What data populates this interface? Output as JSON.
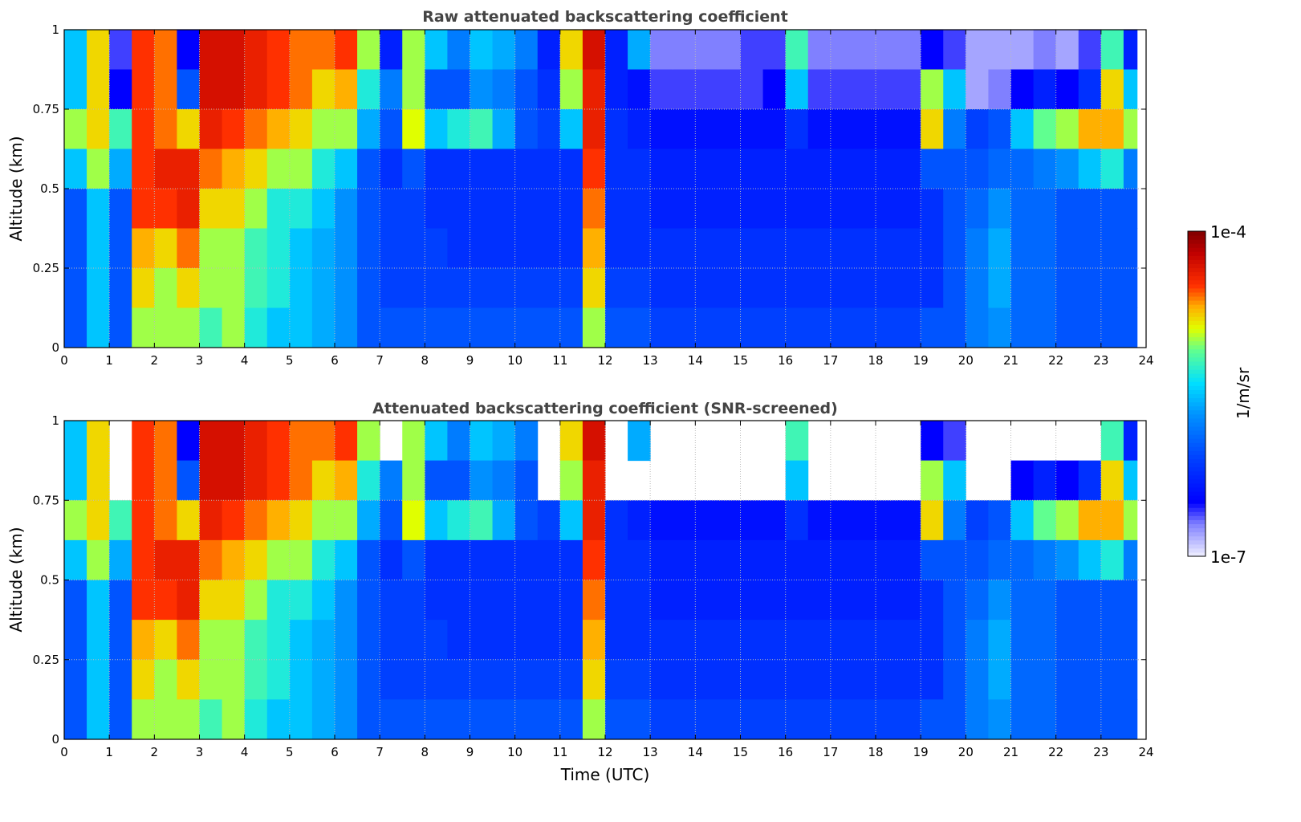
{
  "chart_data": {
    "type": "heatmap",
    "panels": [
      {
        "title": "Raw attenuated backscattering coefficient",
        "ylabel": "Altitude (km)",
        "screened": false
      },
      {
        "title": "Attenuated backscattering coefficient (SNR-screened)",
        "ylabel": "Altitude (km)",
        "xlabel": "Time (UTC)",
        "screened": true
      }
    ],
    "xlim": [
      0,
      24
    ],
    "ylim": [
      0,
      1
    ],
    "data_end_time": 23.8,
    "x_ticks": [
      0,
      1,
      2,
      3,
      4,
      5,
      6,
      7,
      8,
      9,
      10,
      11,
      12,
      13,
      14,
      15,
      16,
      17,
      18,
      19,
      20,
      21,
      22,
      23,
      24
    ],
    "y_ticks": [
      0,
      0.25,
      0.5,
      0.75,
      1
    ],
    "y_tick_labels": [
      "0",
      "0.25",
      "0.5",
      "0.75",
      "1"
    ],
    "grid": true,
    "time_bin_hours": 0.5,
    "altitude_bin_km": 0.125,
    "value_units": "log10(1/m/sr)",
    "values_note_rows": "each column lists altitude bins from top (0.875-1 km) to bottom (0-0.125 km)",
    "values": [
      [
        -5.5,
        -5.5,
        -5,
        -5.5,
        -6,
        -6,
        -6,
        -6
      ],
      [
        -4.8,
        -4.8,
        -4.8,
        -5,
        -5.5,
        -5.5,
        -5.5,
        -5.5
      ],
      [
        -6.6,
        -6.5,
        -5.2,
        -5.6,
        -6,
        -6,
        -6,
        -6
      ],
      [
        -4.5,
        -4.5,
        -4.5,
        -4.5,
        -4.5,
        -4.7,
        -4.8,
        -5
      ],
      [
        -4.6,
        -4.6,
        -4.6,
        -4.4,
        -4.5,
        -4.8,
        -5,
        -5
      ],
      [
        -6.5,
        -6,
        -4.8,
        -4.4,
        -4.4,
        -4.6,
        -4.8,
        -5
      ],
      [
        -4.3,
        -4.3,
        -4.4,
        -4.6,
        -4.8,
        -5,
        -5,
        -5.2
      ],
      [
        -4.3,
        -4.3,
        -4.5,
        -4.7,
        -4.8,
        -5,
        -5,
        -5
      ],
      [
        -4.4,
        -4.4,
        -4.6,
        -4.8,
        -5,
        -5.2,
        -5.2,
        -5.3
      ],
      [
        -4.5,
        -4.5,
        -4.7,
        -5,
        -5.3,
        -5.3,
        -5.3,
        -5.5
      ],
      [
        -4.6,
        -4.6,
        -4.8,
        -5,
        -5.3,
        -5.5,
        -5.5,
        -5.5
      ],
      [
        -4.6,
        -4.8,
        -5,
        -5.3,
        -5.5,
        -5.6,
        -5.6,
        -5.6
      ],
      [
        -4.5,
        -4.7,
        -5,
        -5.5,
        -5.7,
        -5.7,
        -5.7,
        -5.7
      ],
      [
        -5,
        -5.3,
        -5.6,
        -6,
        -6,
        -6,
        -6,
        -6
      ],
      [
        -6.3,
        -5.8,
        -6,
        -6.2,
        -6.1,
        -6.1,
        -6.1,
        -6
      ],
      [
        -5,
        -5,
        -4.9,
        -6,
        -6.1,
        -6.1,
        -6.1,
        -6
      ],
      [
        -5.5,
        -6,
        -5.5,
        -6.2,
        -6.2,
        -6.1,
        -6.1,
        -6
      ],
      [
        -5.8,
        -6,
        -5.3,
        -6.2,
        -6.2,
        -6.2,
        -6.1,
        -6
      ],
      [
        -5.5,
        -5.7,
        -5.2,
        -6.2,
        -6.2,
        -6.2,
        -6.1,
        -6
      ],
      [
        -5.6,
        -5.8,
        -5.6,
        -6.2,
        -6.2,
        -6.2,
        -6.1,
        -6
      ],
      [
        -5.8,
        -6,
        -6,
        -6.2,
        -6.2,
        -6.2,
        -6.1,
        -6
      ],
      [
        -6.3,
        -6.2,
        -6.1,
        -6.2,
        -6.2,
        -6.2,
        -6.1,
        -6
      ],
      [
        -4.8,
        -5,
        -5.5,
        -6.2,
        -6.2,
        -6.2,
        -6.1,
        -6
      ],
      [
        -4.3,
        -4.4,
        -4.4,
        -4.5,
        -4.6,
        -4.7,
        -4.8,
        -5
      ],
      [
        -6.3,
        -6.3,
        -6.2,
        -6.2,
        -6.2,
        -6.2,
        -6.1,
        -6
      ],
      [
        -5.6,
        -6.4,
        -6.3,
        -6.2,
        -6.2,
        -6.2,
        -6.1,
        -6
      ],
      [
        -6.7,
        -6.6,
        -6.4,
        -6.3,
        -6.3,
        -6.2,
        -6.2,
        -6.1
      ],
      [
        -6.7,
        -6.6,
        -6.4,
        -6.3,
        -6.3,
        -6.2,
        -6.2,
        -6.1
      ],
      [
        -6.7,
        -6.6,
        -6.4,
        -6.3,
        -6.3,
        -6.2,
        -6.2,
        -6.1
      ],
      [
        -6.7,
        -6.6,
        -6.4,
        -6.3,
        -6.3,
        -6.2,
        -6.2,
        -6.1
      ],
      [
        -6.6,
        -6.6,
        -6.4,
        -6.3,
        -6.3,
        -6.2,
        -6.2,
        -6.1
      ],
      [
        -6.6,
        -6.5,
        -6.4,
        -6.3,
        -6.3,
        -6.2,
        -6.2,
        -6.1
      ],
      [
        -5.2,
        -5.5,
        -6.2,
        -6.3,
        -6.3,
        -6.2,
        -6.2,
        -6.1
      ],
      [
        -6.7,
        -6.6,
        -6.4,
        -6.3,
        -6.3,
        -6.2,
        -6.2,
        -6.1
      ],
      [
        -6.7,
        -6.6,
        -6.4,
        -6.3,
        -6.3,
        -6.2,
        -6.2,
        -6.1
      ],
      [
        -6.7,
        -6.6,
        -6.4,
        -6.3,
        -6.3,
        -6.2,
        -6.2,
        -6.1
      ],
      [
        -6.7,
        -6.6,
        -6.4,
        -6.3,
        -6.3,
        -6.2,
        -6.2,
        -6.1
      ],
      [
        -6.7,
        -6.6,
        -6.4,
        -6.3,
        -6.3,
        -6.2,
        -6.2,
        -6.1
      ],
      [
        -6.5,
        -5,
        -4.8,
        -6,
        -6.2,
        -6.2,
        -6.2,
        -6
      ],
      [
        -6.6,
        -5.5,
        -5.8,
        -6,
        -6,
        -6,
        -6,
        -6
      ],
      [
        -6.8,
        -6.8,
        -6.1,
        -6,
        -5.9,
        -5.8,
        -5.8,
        -5.8
      ],
      [
        -6.8,
        -6.7,
        -6,
        -5.9,
        -5.7,
        -5.6,
        -5.6,
        -5.7
      ],
      [
        -6.8,
        -6.5,
        -5.5,
        -5.9,
        -5.9,
        -5.9,
        -5.9,
        -5.9
      ],
      [
        -6.7,
        -6.3,
        -5.1,
        -5.8,
        -5.9,
        -5.9,
        -5.9,
        -5.9
      ],
      [
        -6.8,
        -6.5,
        -5,
        -5.7,
        -6,
        -6,
        -6,
        -6
      ],
      [
        -6.6,
        -6.2,
        -4.7,
        -5.5,
        -6,
        -6,
        -6,
        -6
      ],
      [
        -5.2,
        -4.8,
        -4.7,
        -5.3,
        -6,
        -6,
        -6,
        -6
      ],
      [
        -6.3,
        -5.5,
        -5,
        -5.8,
        -6,
        -6,
        -6,
        -6
      ]
    ],
    "snr_screened_out_cells": [
      [
        2,
        0
      ],
      [
        2,
        1
      ],
      [
        14,
        0
      ],
      [
        21,
        0
      ],
      [
        21,
        1
      ],
      [
        24,
        0
      ],
      [
        24,
        1
      ],
      [
        25,
        1
      ],
      [
        26,
        0
      ],
      [
        26,
        1
      ],
      [
        27,
        0
      ],
      [
        27,
        1
      ],
      [
        28,
        0
      ],
      [
        28,
        1
      ],
      [
        29,
        0
      ],
      [
        29,
        1
      ],
      [
        30,
        0
      ],
      [
        30,
        1
      ],
      [
        31,
        0
      ],
      [
        31,
        1
      ],
      [
        33,
        0
      ],
      [
        33,
        1
      ],
      [
        34,
        0
      ],
      [
        34,
        1
      ],
      [
        35,
        0
      ],
      [
        35,
        1
      ],
      [
        36,
        0
      ],
      [
        36,
        1
      ],
      [
        37,
        0
      ],
      [
        37,
        1
      ],
      [
        40,
        0
      ],
      [
        40,
        1
      ],
      [
        41,
        0
      ],
      [
        41,
        1
      ],
      [
        42,
        0
      ],
      [
        43,
        0
      ],
      [
        44,
        0
      ],
      [
        45,
        0
      ]
    ],
    "colorbar": {
      "label": "1/m/sr",
      "max_label": "1e-4",
      "min_label": "1e-7",
      "range_log10": [
        -7,
        -4
      ]
    },
    "colormap": [
      [
        -7.0,
        "#f0f0ff"
      ],
      [
        -6.7,
        "#8080ff"
      ],
      [
        -6.5,
        "#0000ff"
      ],
      [
        -6.1,
        "#0040ff"
      ],
      [
        -5.7,
        "#0090ff"
      ],
      [
        -5.4,
        "#00e0ff"
      ],
      [
        -5.1,
        "#60ff90"
      ],
      [
        -4.9,
        "#e0ff00"
      ],
      [
        -4.7,
        "#ffb000"
      ],
      [
        -4.5,
        "#ff3000"
      ],
      [
        -4.2,
        "#c00000"
      ],
      [
        -4.0,
        "#800000"
      ]
    ]
  }
}
